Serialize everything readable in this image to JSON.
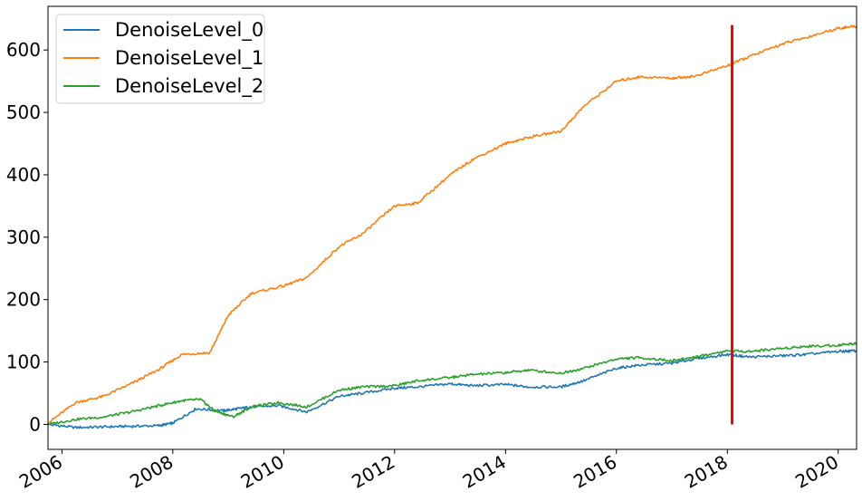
{
  "chart_data": {
    "type": "line",
    "title": "",
    "xlabel": "",
    "ylabel": "",
    "xlim": [
      "2005-10-01",
      "2020-05-01"
    ],
    "ylim": [
      -40,
      670
    ],
    "grid": false,
    "legend": {
      "position": "top-left",
      "entries": [
        "DenoiseLevel_0",
        "DenoiseLevel_1",
        "DenoiseLevel_2"
      ]
    },
    "x_ticks": [
      "2006",
      "2008",
      "2010",
      "2012",
      "2014",
      "2016",
      "2018",
      "2020"
    ],
    "y_ticks": [
      0,
      100,
      200,
      300,
      400,
      500,
      600
    ],
    "series": [
      {
        "name": "DenoiseLevel_0",
        "color": "#1f77b4",
        "points": [
          [
            "2005-10-01",
            0
          ],
          [
            "2006-04-01",
            -5
          ],
          [
            "2006-10-01",
            -4
          ],
          [
            "2007-04-01",
            -3
          ],
          [
            "2007-10-01",
            -2
          ],
          [
            "2008-01-01",
            2
          ],
          [
            "2008-06-01",
            25
          ],
          [
            "2008-12-01",
            22
          ],
          [
            "2009-03-01",
            25
          ],
          [
            "2009-06-01",
            28
          ],
          [
            "2009-12-01",
            30
          ],
          [
            "2010-06-01",
            20
          ],
          [
            "2011-01-01",
            45
          ],
          [
            "2011-06-01",
            50
          ],
          [
            "2012-01-01",
            58
          ],
          [
            "2012-06-01",
            60
          ],
          [
            "2013-01-01",
            65
          ],
          [
            "2013-06-01",
            62
          ],
          [
            "2014-01-01",
            64
          ],
          [
            "2014-06-01",
            60
          ],
          [
            "2015-01-01",
            60
          ],
          [
            "2015-06-01",
            70
          ],
          [
            "2016-01-01",
            90
          ],
          [
            "2016-06-01",
            95
          ],
          [
            "2017-01-01",
            98
          ],
          [
            "2017-06-01",
            105
          ],
          [
            "2018-01-01",
            112
          ],
          [
            "2018-06-01",
            108
          ],
          [
            "2019-01-01",
            110
          ],
          [
            "2019-06-01",
            112
          ],
          [
            "2020-01-01",
            117
          ],
          [
            "2020-05-01",
            118
          ]
        ]
      },
      {
        "name": "DenoiseLevel_1",
        "color": "#ff7f0e",
        "points": [
          [
            "2005-10-01",
            2
          ],
          [
            "2006-04-01",
            35
          ],
          [
            "2006-10-01",
            45
          ],
          [
            "2007-04-01",
            65
          ],
          [
            "2007-10-01",
            88
          ],
          [
            "2008-03-01",
            112
          ],
          [
            "2008-09-01",
            115
          ],
          [
            "2009-01-01",
            175
          ],
          [
            "2009-06-01",
            210
          ],
          [
            "2010-01-01",
            222
          ],
          [
            "2010-06-01",
            235
          ],
          [
            "2011-01-01",
            285
          ],
          [
            "2011-06-01",
            305
          ],
          [
            "2012-01-01",
            350
          ],
          [
            "2012-06-01",
            355
          ],
          [
            "2013-01-01",
            400
          ],
          [
            "2013-06-01",
            425
          ],
          [
            "2014-01-01",
            450
          ],
          [
            "2014-06-01",
            460
          ],
          [
            "2015-01-01",
            470
          ],
          [
            "2015-06-01",
            510
          ],
          [
            "2016-01-01",
            550
          ],
          [
            "2016-06-01",
            557
          ],
          [
            "2017-01-01",
            555
          ],
          [
            "2017-06-01",
            558
          ],
          [
            "2018-01-01",
            575
          ],
          [
            "2018-06-01",
            590
          ],
          [
            "2019-01-01",
            610
          ],
          [
            "2019-06-01",
            620
          ],
          [
            "2020-01-01",
            635
          ],
          [
            "2020-05-01",
            638
          ]
        ]
      },
      {
        "name": "DenoiseLevel_2",
        "color": "#2ca02c",
        "points": [
          [
            "2005-10-01",
            0
          ],
          [
            "2006-04-01",
            8
          ],
          [
            "2006-10-01",
            12
          ],
          [
            "2007-04-01",
            20
          ],
          [
            "2007-10-01",
            30
          ],
          [
            "2008-03-01",
            38
          ],
          [
            "2008-07-01",
            40
          ],
          [
            "2008-10-01",
            22
          ],
          [
            "2009-02-01",
            12
          ],
          [
            "2009-06-01",
            28
          ],
          [
            "2009-12-01",
            35
          ],
          [
            "2010-06-01",
            28
          ],
          [
            "2011-01-01",
            55
          ],
          [
            "2011-06-01",
            60
          ],
          [
            "2012-01-01",
            62
          ],
          [
            "2012-06-01",
            70
          ],
          [
            "2013-01-01",
            75
          ],
          [
            "2013-06-01",
            80
          ],
          [
            "2014-01-01",
            83
          ],
          [
            "2014-06-01",
            87
          ],
          [
            "2015-01-01",
            82
          ],
          [
            "2015-06-01",
            90
          ],
          [
            "2016-01-01",
            105
          ],
          [
            "2016-06-01",
            107
          ],
          [
            "2017-01-01",
            102
          ],
          [
            "2017-06-01",
            108
          ],
          [
            "2018-01-01",
            118
          ],
          [
            "2018-06-01",
            117
          ],
          [
            "2019-01-01",
            122
          ],
          [
            "2019-06-01",
            125
          ],
          [
            "2020-01-01",
            127
          ],
          [
            "2020-05-01",
            130
          ]
        ]
      }
    ],
    "annotations": [
      {
        "type": "vertical-line",
        "x": "2018-02-01",
        "y_range": [
          0,
          640
        ],
        "color": "#ff0000"
      }
    ]
  }
}
